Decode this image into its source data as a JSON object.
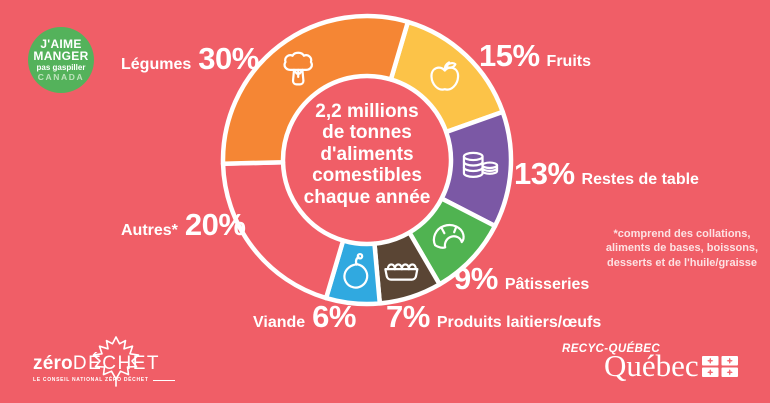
{
  "background_color": "#F05E67",
  "badge": {
    "color": "#54B25B",
    "canada_color": "#BEE3BC",
    "line1": "J'AIME",
    "line2": "MANGER",
    "line3": "pas gaspiller",
    "line4": "CANADA"
  },
  "chart_data": {
    "type": "donut",
    "units": "%",
    "start_angle_deg": 16.5,
    "direction": "clockwise",
    "center_label": "2,2 millions\nde tonnes\nd'aliments\ncomestibles\nchaque année",
    "slices": [
      {
        "id": "fruits",
        "name": "Fruits",
        "value": 15,
        "pct_label": "15%",
        "color": "#FCC348",
        "icon": "apple-icon"
      },
      {
        "id": "restes-de-table",
        "name": "Restes de table",
        "value": 13,
        "pct_label": "13%",
        "color": "#7B58A5",
        "icon": "cans-icon"
      },
      {
        "id": "patisseries",
        "name": "Pâtisseries",
        "value": 9,
        "pct_label": "9%",
        "color": "#50B351",
        "icon": "croissant-icon"
      },
      {
        "id": "produits-laitiers-oeufs",
        "name": "Produits laitiers/œufs",
        "value": 7,
        "pct_label": "7%",
        "color": "#5A4534",
        "icon": "eggs-icon"
      },
      {
        "id": "viande",
        "name": "Viande",
        "value": 6,
        "pct_label": "6%",
        "color": "#30A9E0",
        "icon": "drumstick-icon"
      },
      {
        "id": "autres",
        "name": "Autres*",
        "value": 20,
        "pct_label": "20%",
        "color": "#F05E67",
        "icon": null
      },
      {
        "id": "legumes",
        "name": "Légumes",
        "value": 30,
        "pct_label": "30%",
        "color": "#F58634",
        "icon": "broccoli-icon"
      }
    ]
  },
  "footnote": "*comprend des collations,\naliments de bases, boissons,\ndesserts et de l'huile/graisse",
  "footer": {
    "zerowaste_bold": "zéro",
    "zerowaste_light": "DÉCHET",
    "zerowaste_tagline": "LE CONSEIL NATIONAL ZÉRO DÉCHET",
    "maple_leaf_icon": "maple-leaf-icon",
    "recyc_label": "RECYC-QUÉBEC",
    "quebec_label": "Québec",
    "quebec_flag_icon": "quebec-flag-icon"
  }
}
